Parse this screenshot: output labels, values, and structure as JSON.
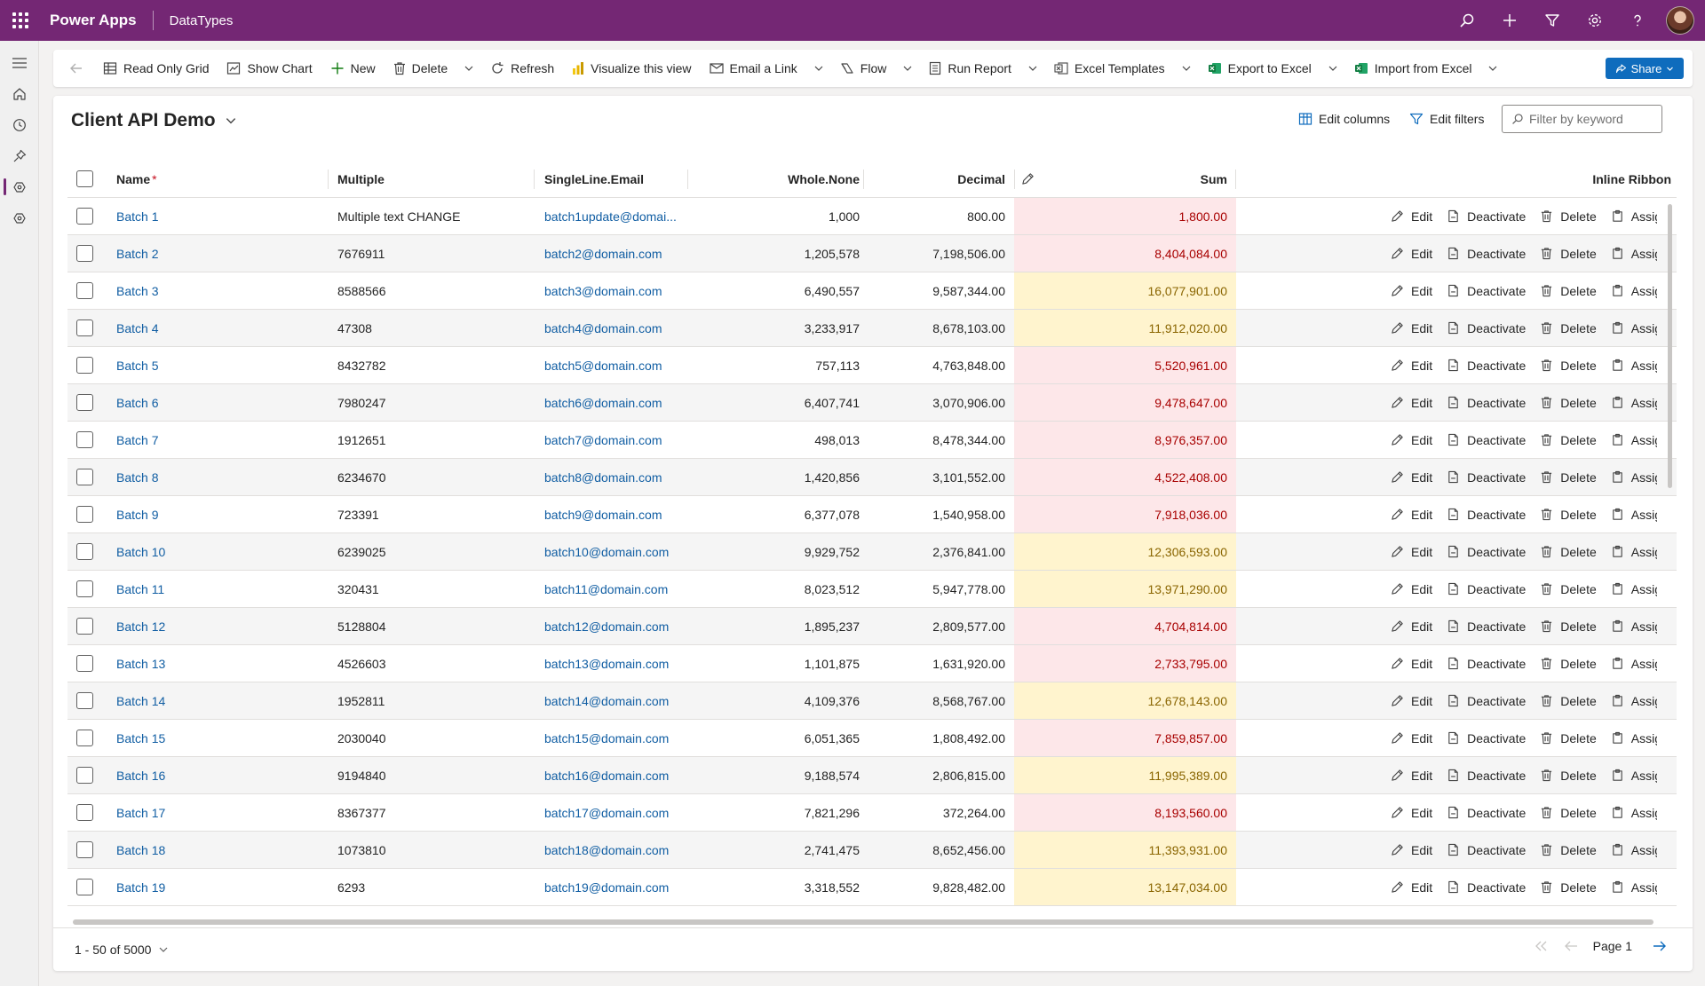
{
  "header": {
    "app_name": "Power Apps",
    "environment": "DataTypes",
    "icons": [
      "search-icon",
      "plus-icon",
      "filter-icon",
      "settings-icon",
      "help-icon"
    ]
  },
  "leftnav": {
    "icons": [
      "hamburger-icon",
      "home-icon",
      "recent-icon",
      "pin-icon",
      "entity-icon",
      "entity-icon"
    ],
    "active_index": 4
  },
  "commandbar": {
    "read_only_grid": "Read Only Grid",
    "show_chart": "Show Chart",
    "new": "New",
    "delete": "Delete",
    "refresh": "Refresh",
    "visualize": "Visualize this view",
    "email_link": "Email a Link",
    "flow": "Flow",
    "run_report": "Run Report",
    "excel_templates": "Excel Templates",
    "export_excel": "Export to Excel",
    "import_excel": "Import from Excel",
    "share": "Share"
  },
  "view": {
    "title": "Client API Demo",
    "edit_columns": "Edit columns",
    "edit_filters": "Edit filters",
    "filter_placeholder": "Filter by keyword"
  },
  "columns": {
    "name": "Name",
    "required_mark": "*",
    "multiple": "Multiple",
    "email": "SingleLine.Email",
    "whole": "Whole.None",
    "decimal": "Decimal",
    "sum": "Sum",
    "ribbon": "Inline Ribbon"
  },
  "row_actions": {
    "edit": "Edit",
    "deactivate": "Deactivate",
    "delete": "Delete",
    "assign": "Assign"
  },
  "rows": [
    {
      "name": "Batch 1",
      "multiple": "Multiple text CHANGE",
      "email": "batch1update@domai...",
      "whole": "1,000",
      "decimal": "800.00",
      "sum": "1,800.00",
      "sum_color": "red"
    },
    {
      "name": "Batch 2",
      "multiple": "7676911",
      "email": "batch2@domain.com",
      "whole": "1,205,578",
      "decimal": "7,198,506.00",
      "sum": "8,404,084.00",
      "sum_color": "red"
    },
    {
      "name": "Batch 3",
      "multiple": "8588566",
      "email": "batch3@domain.com",
      "whole": "6,490,557",
      "decimal": "9,587,344.00",
      "sum": "16,077,901.00",
      "sum_color": "yellow"
    },
    {
      "name": "Batch 4",
      "multiple": "47308",
      "email": "batch4@domain.com",
      "whole": "3,233,917",
      "decimal": "8,678,103.00",
      "sum": "11,912,020.00",
      "sum_color": "yellow"
    },
    {
      "name": "Batch 5",
      "multiple": "8432782",
      "email": "batch5@domain.com",
      "whole": "757,113",
      "decimal": "4,763,848.00",
      "sum": "5,520,961.00",
      "sum_color": "red"
    },
    {
      "name": "Batch 6",
      "multiple": "7980247",
      "email": "batch6@domain.com",
      "whole": "6,407,741",
      "decimal": "3,070,906.00",
      "sum": "9,478,647.00",
      "sum_color": "red"
    },
    {
      "name": "Batch 7",
      "multiple": "1912651",
      "email": "batch7@domain.com",
      "whole": "498,013",
      "decimal": "8,478,344.00",
      "sum": "8,976,357.00",
      "sum_color": "red"
    },
    {
      "name": "Batch 8",
      "multiple": "6234670",
      "email": "batch8@domain.com",
      "whole": "1,420,856",
      "decimal": "3,101,552.00",
      "sum": "4,522,408.00",
      "sum_color": "red"
    },
    {
      "name": "Batch 9",
      "multiple": "723391",
      "email": "batch9@domain.com",
      "whole": "6,377,078",
      "decimal": "1,540,958.00",
      "sum": "7,918,036.00",
      "sum_color": "red"
    },
    {
      "name": "Batch 10",
      "multiple": "6239025",
      "email": "batch10@domain.com",
      "whole": "9,929,752",
      "decimal": "2,376,841.00",
      "sum": "12,306,593.00",
      "sum_color": "yellow"
    },
    {
      "name": "Batch 11",
      "multiple": "320431",
      "email": "batch11@domain.com",
      "whole": "8,023,512",
      "decimal": "5,947,778.00",
      "sum": "13,971,290.00",
      "sum_color": "yellow"
    },
    {
      "name": "Batch 12",
      "multiple": "5128804",
      "email": "batch12@domain.com",
      "whole": "1,895,237",
      "decimal": "2,809,577.00",
      "sum": "4,704,814.00",
      "sum_color": "red"
    },
    {
      "name": "Batch 13",
      "multiple": "4526603",
      "email": "batch13@domain.com",
      "whole": "1,101,875",
      "decimal": "1,631,920.00",
      "sum": "2,733,795.00",
      "sum_color": "red"
    },
    {
      "name": "Batch 14",
      "multiple": "1952811",
      "email": "batch14@domain.com",
      "whole": "4,109,376",
      "decimal": "8,568,767.00",
      "sum": "12,678,143.00",
      "sum_color": "yellow"
    },
    {
      "name": "Batch 15",
      "multiple": "2030040",
      "email": "batch15@domain.com",
      "whole": "6,051,365",
      "decimal": "1,808,492.00",
      "sum": "7,859,857.00",
      "sum_color": "red"
    },
    {
      "name": "Batch 16",
      "multiple": "9194840",
      "email": "batch16@domain.com",
      "whole": "9,188,574",
      "decimal": "2,806,815.00",
      "sum": "11,995,389.00",
      "sum_color": "yellow"
    },
    {
      "name": "Batch 17",
      "multiple": "8367377",
      "email": "batch17@domain.com",
      "whole": "7,821,296",
      "decimal": "372,264.00",
      "sum": "8,193,560.00",
      "sum_color": "red"
    },
    {
      "name": "Batch 18",
      "multiple": "1073810",
      "email": "batch18@domain.com",
      "whole": "2,741,475",
      "decimal": "8,652,456.00",
      "sum": "11,393,931.00",
      "sum_color": "yellow"
    },
    {
      "name": "Batch 19",
      "multiple": "6293",
      "email": "batch19@domain.com",
      "whole": "3,318,552",
      "decimal": "9,828,482.00",
      "sum": "13,147,034.00",
      "sum_color": "yellow"
    }
  ],
  "footer": {
    "record_count": "1 - 50 of 5000",
    "page_label": "Page 1"
  },
  "colors": {
    "header_bg": "#742774",
    "link": "#115ea3",
    "sum_red_bg": "#fde7e9",
    "sum_red_text": "#a80000",
    "sum_yellow_bg": "#fff4ce",
    "sum_yellow_text": "#8a6500",
    "share_bg": "#0f6cbd"
  }
}
